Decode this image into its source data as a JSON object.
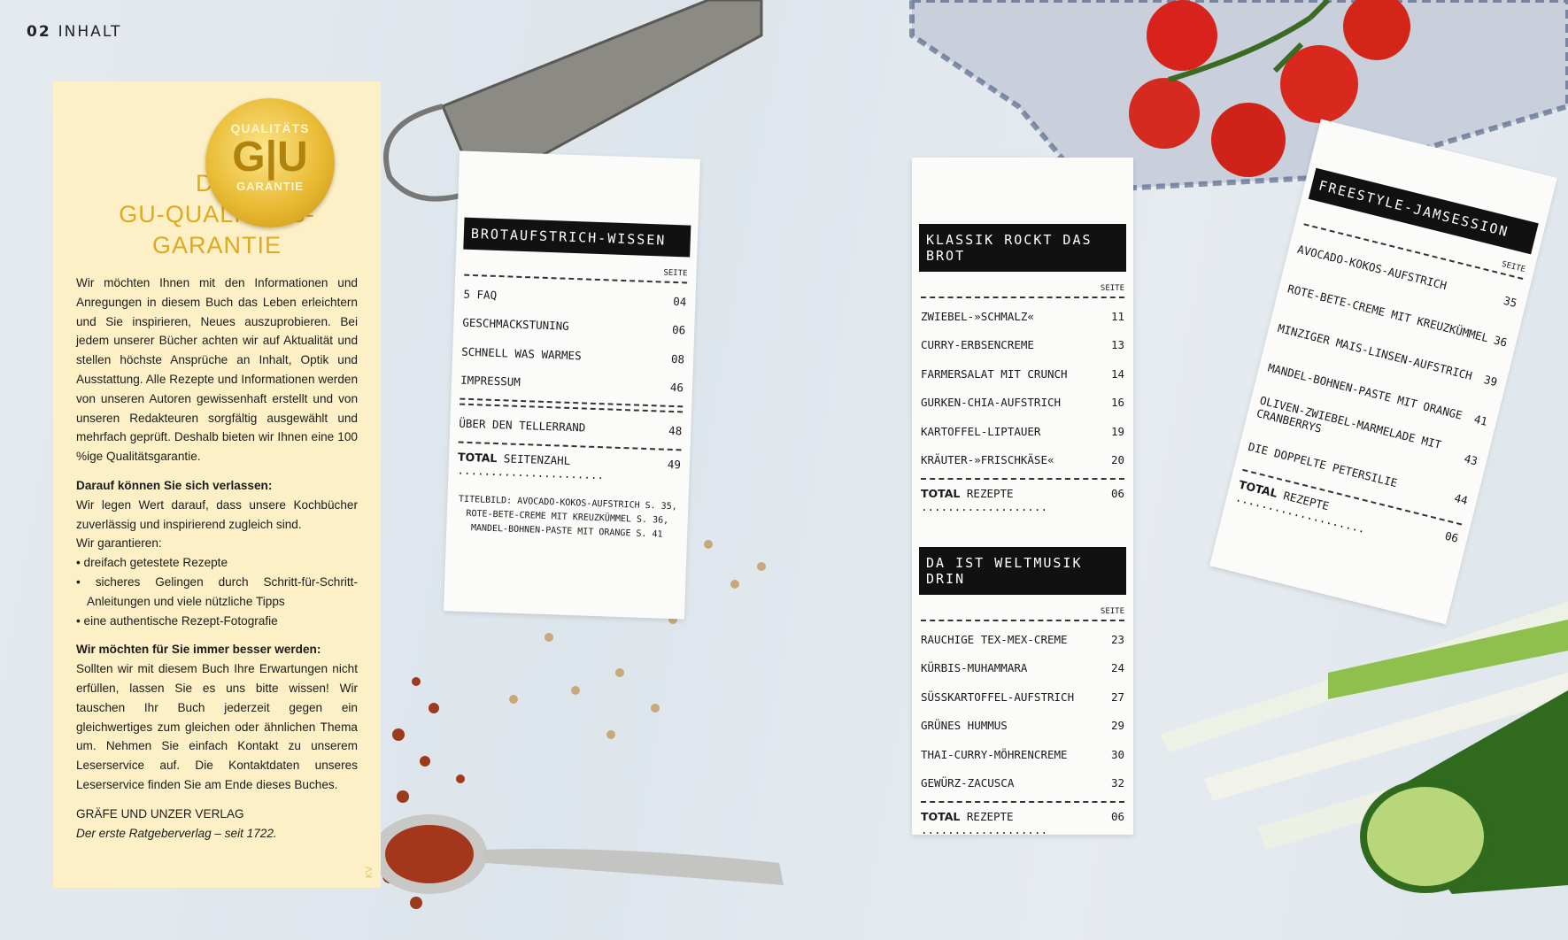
{
  "page": {
    "number": "02",
    "section": "INHALT"
  },
  "seal": {
    "top": "QUALITÄTS",
    "logo": "G|U",
    "bottom": "GARANTIE"
  },
  "panel": {
    "title": [
      "DIE",
      "GU-QUALITÄTS-",
      "GARANTIE"
    ],
    "intro": "Wir möchten Ihnen mit den Informationen und Anregungen in diesem Buch das Leben erleichtern und Sie inspirieren, Neues auszuprobieren. Bei jedem unserer Bücher achten wir auf Aktualität und stellen höchste Ansprüche an Inhalt, Optik und Ausstattung. Alle Rezepte und Informationen werden von unseren Autoren gewissenhaft erstellt und von unseren Redakteuren sorgfältig ausgewählt und mehrfach geprüft. Deshalb bieten wir Ihnen eine 100 %ige Qualitätsgarantie.",
    "h1": "Darauf können Sie sich verlassen:",
    "p1": "Wir legen Wert darauf, dass unsere Kochbücher zuverlässig und inspirierend zugleich sind.",
    "p1b": "Wir garantieren:",
    "bullets": [
      "dreifach getestete Rezepte",
      "sicheres Gelingen durch Schritt-für-Schritt-Anleitungen und viele nützliche Tipps",
      "eine authentische Rezept-Fotografie"
    ],
    "h2": "Wir möchten für Sie immer besser werden:",
    "p2": "Sollten wir mit diesem Buch Ihre Erwartungen nicht erfüllen, lassen Sie es uns bitte wissen! Wir tauschen Ihr Buch jederzeit gegen ein gleichwertiges zum gleichen oder ähnlichen Thema um. Nehmen Sie einfach Kontakt zu unserem Leserservice auf. Die Kontaktdaten unseres Leserservice finden Sie am Ende dieses Buches.",
    "publisher": "GRÄFE UND UNZER VERLAG",
    "tagline": "Der erste Ratgeberverlag – seit 1722.",
    "kv": "KV"
  },
  "receipts": {
    "r1": {
      "title": "BROTAUFSTRICH-WISSEN",
      "seite": "SEITE",
      "items": [
        [
          "5 FAQ",
          "04"
        ],
        [
          "GESCHMACKSTUNING",
          "06"
        ],
        [
          "SCHNELL WAS WARMES",
          "08"
        ],
        [
          "IMPRESSUM",
          "46"
        ]
      ],
      "extra": [
        [
          "ÜBER DEN TELLERRAND",
          "48"
        ]
      ],
      "total_label": "TOTAL",
      "total_text": "SEITENZAHL ......................",
      "total_value": "49",
      "note": "TITELBILD: AVOCADO-KOKOS-AUFSTRICH S. 35, ROTE-BETE-CREME MIT KREUZKÜMMEL S. 36, MANDEL-BOHNEN-PASTE MIT ORANGE S. 41"
    },
    "r2": {
      "title": "KLASSIK ROCKT DAS BROT",
      "seite": "SEITE",
      "items": [
        [
          "ZWIEBEL-»SCHMALZ«",
          "11"
        ],
        [
          "CURRY-ERBSENCREME",
          "13"
        ],
        [
          "FARMERSALAT MIT CRUNCH",
          "14"
        ],
        [
          "GURKEN-CHIA-AUFSTRICH",
          "16"
        ],
        [
          "KARTOFFEL-LIPTAUER",
          "19"
        ],
        [
          "KRÄUTER-»FRISCHKÄSE«",
          "20"
        ]
      ],
      "total_label": "TOTAL",
      "total_text": "REZEPTE ...................",
      "total_value": "06"
    },
    "r3": {
      "title": "DA IST WELTMUSIK DRIN",
      "seite": "SEITE",
      "items": [
        [
          "RAUCHIGE TEX-MEX-CREME",
          "23"
        ],
        [
          "KÜRBIS-MUHAMMARA",
          "24"
        ],
        [
          "SÜSSKARTOFFEL-AUFSTRICH",
          "27"
        ],
        [
          "GRÜNES HUMMUS",
          "29"
        ],
        [
          "THAI-CURRY-MÖHRENCREME",
          "30"
        ],
        [
          "GEWÜRZ-ZACUSCA",
          "32"
        ]
      ],
      "total_label": "TOTAL",
      "total_text": "REZEPTE ...................",
      "total_value": "06"
    },
    "r4": {
      "title": "FREESTYLE-JAMSESSION",
      "seite": "SEITE",
      "items": [
        [
          "AVOCADO-KOKOS-AUFSTRICH",
          "35"
        ],
        [
          "ROTE-BETE-CREME MIT KREUZKÜMMEL",
          "36"
        ],
        [
          "MINZIGER MAIS-LINSEN-AUFSTRICH",
          "39"
        ],
        [
          "MANDEL-BOHNEN-PASTE MIT ORANGE",
          "41"
        ],
        [
          "OLIVEN-ZWIEBEL-MARMELADE MIT CRANBERRYS",
          "43"
        ],
        [
          "DIE DOPPELTE PETERSILIE",
          "44"
        ]
      ],
      "total_label": "TOTAL",
      "total_text": "REZEPTE ....................",
      "total_value": "06"
    }
  },
  "colors": {
    "panel": "#fdf0c6",
    "title_gold": "#e0a91d",
    "background": "#dfe6ec"
  }
}
